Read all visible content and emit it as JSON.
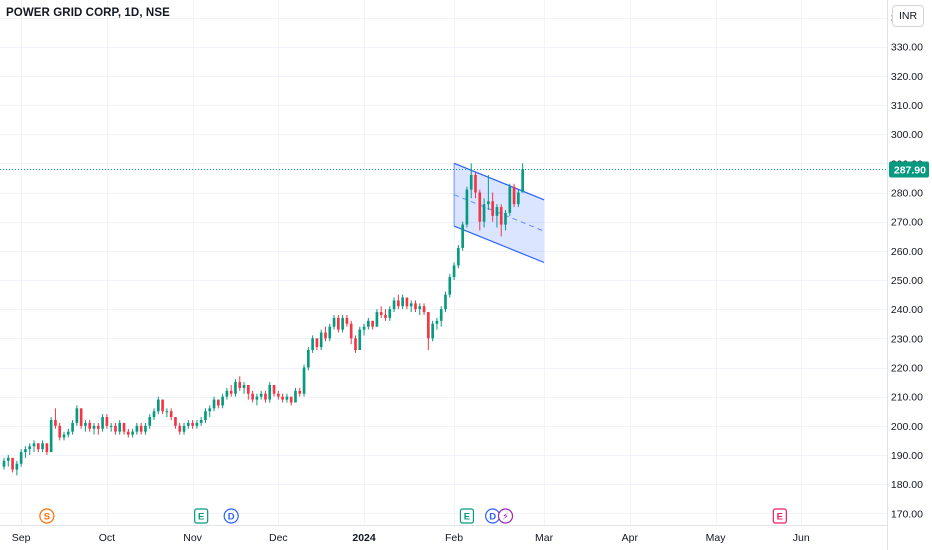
{
  "header": {
    "title": "POWER GRID CORP, 1D, NSE",
    "currency": "INR"
  },
  "colors": {
    "up": "#089981",
    "down": "#f23645",
    "channel_border": "#2962ff",
    "channel_fill": "#2962ff",
    "last_price_line": "#089981",
    "grid": "#f0f3fa",
    "axis_text": "#131722",
    "event_earnings": "#089981",
    "event_dividend": "#2962ff",
    "event_split": "#ff6d00",
    "event_future_earnings": "#e91e63",
    "event_news": "#9c27b0"
  },
  "chart_data": {
    "type": "candlestick",
    "symbol": "POWER GRID CORP",
    "interval": "1D",
    "exchange": "NSE",
    "y_axis": {
      "ylim": [
        166,
        346
      ],
      "ticks": [
        "170.00",
        "180.00",
        "190.00",
        "200.00",
        "210.00",
        "220.00",
        "230.00",
        "240.00",
        "250.00",
        "260.00",
        "270.00",
        "280.00",
        "290.00",
        "300.00",
        "310.00",
        "320.00",
        "330.00",
        "340.00"
      ],
      "position": "right"
    },
    "x_axis": {
      "xlim": [
        0,
        206
      ],
      "ticks": [
        {
          "label": "Sep",
          "x": 4
        },
        {
          "label": "Oct",
          "x": 24
        },
        {
          "label": "Nov",
          "x": 44
        },
        {
          "label": "Dec",
          "x": 64
        },
        {
          "label": "2024",
          "x": 84
        },
        {
          "label": "Feb",
          "x": 105
        },
        {
          "label": "Mar",
          "x": 126
        },
        {
          "label": "Apr",
          "x": 146
        },
        {
          "label": "May",
          "x": 166
        },
        {
          "label": "Jun",
          "x": 186
        }
      ]
    },
    "last_price": "287.90",
    "last_price_value": 287.9,
    "candles": [
      [
        186,
        189,
        185,
        188
      ],
      [
        188,
        190,
        186,
        189
      ],
      [
        189,
        189,
        184,
        185
      ],
      [
        185,
        188,
        183,
        187
      ],
      [
        187,
        192,
        186,
        191
      ],
      [
        191,
        193,
        189,
        192
      ],
      [
        192,
        194,
        190,
        193
      ],
      [
        193,
        195,
        191,
        194
      ],
      [
        194,
        194,
        191,
        192
      ],
      [
        192,
        195,
        191,
        194
      ],
      [
        194,
        194,
        190,
        191
      ],
      [
        191,
        203,
        191,
        202
      ],
      [
        202,
        206,
        199,
        200
      ],
      [
        200,
        201,
        195,
        196
      ],
      [
        196,
        198,
        195,
        197
      ],
      [
        197,
        199,
        196,
        198
      ],
      [
        198,
        202,
        197,
        201
      ],
      [
        201,
        207,
        200,
        206
      ],
      [
        206,
        206,
        199,
        200
      ],
      [
        200,
        202,
        198,
        201
      ],
      [
        201,
        202,
        198,
        199
      ],
      [
        199,
        201,
        197,
        200
      ],
      [
        200,
        201,
        197,
        199
      ],
      [
        199,
        204,
        198,
        203
      ],
      [
        203,
        204,
        199,
        200
      ],
      [
        200,
        201,
        198,
        200
      ],
      [
        200,
        201,
        197,
        198
      ],
      [
        198,
        202,
        197,
        201
      ],
      [
        201,
        201,
        197,
        198
      ],
      [
        198,
        199,
        196,
        197
      ],
      [
        197,
        199,
        196,
        198
      ],
      [
        198,
        201,
        197,
        200
      ],
      [
        200,
        201,
        197,
        198
      ],
      [
        198,
        201,
        197,
        200
      ],
      [
        200,
        204,
        199,
        203
      ],
      [
        203,
        206,
        202,
        205
      ],
      [
        205,
        210,
        204,
        209
      ],
      [
        209,
        209,
        204,
        205
      ],
      [
        205,
        206,
        203,
        205
      ],
      [
        205,
        206,
        202,
        203
      ],
      [
        203,
        203,
        199,
        200
      ],
      [
        200,
        201,
        197,
        198
      ],
      [
        198,
        201,
        197,
        200
      ],
      [
        200,
        202,
        199,
        201
      ],
      [
        201,
        202,
        199,
        200
      ],
      [
        200,
        202,
        199,
        201
      ],
      [
        201,
        203,
        200,
        202
      ],
      [
        202,
        206,
        201,
        205
      ],
      [
        205,
        207,
        203,
        206
      ],
      [
        206,
        210,
        205,
        209
      ],
      [
        209,
        209,
        206,
        207
      ],
      [
        207,
        211,
        206,
        210
      ],
      [
        210,
        213,
        209,
        212
      ],
      [
        212,
        214,
        210,
        211
      ],
      [
        211,
        216,
        210,
        215
      ],
      [
        215,
        217,
        212,
        213
      ],
      [
        213,
        215,
        211,
        214
      ],
      [
        214,
        214,
        209,
        211
      ],
      [
        211,
        212,
        208,
        209
      ],
      [
        209,
        211,
        207,
        210
      ],
      [
        210,
        212,
        209,
        211
      ],
      [
        211,
        212,
        208,
        209
      ],
      [
        209,
        215,
        208,
        214
      ],
      [
        214,
        214,
        210,
        211
      ],
      [
        211,
        212,
        209,
        210
      ],
      [
        210,
        211,
        208,
        209
      ],
      [
        209,
        211,
        208,
        210
      ],
      [
        210,
        210,
        207,
        208
      ],
      [
        208,
        213,
        208,
        212
      ],
      [
        212,
        213,
        210,
        211
      ],
      [
        211,
        221,
        210,
        220
      ],
      [
        220,
        227,
        219,
        226
      ],
      [
        226,
        231,
        225,
        230
      ],
      [
        230,
        230,
        226,
        227
      ],
      [
        227,
        233,
        226,
        232
      ],
      [
        232,
        234,
        229,
        230
      ],
      [
        230,
        235,
        229,
        234
      ],
      [
        234,
        238,
        233,
        237
      ],
      [
        237,
        238,
        232,
        233
      ],
      [
        233,
        238,
        232,
        237
      ],
      [
        237,
        238,
        234,
        235
      ],
      [
        235,
        236,
        228,
        230
      ],
      [
        230,
        231,
        225,
        226
      ],
      [
        226,
        234,
        226,
        233
      ],
      [
        233,
        235,
        231,
        234
      ],
      [
        234,
        237,
        233,
        236
      ],
      [
        236,
        236,
        233,
        234
      ],
      [
        234,
        240,
        234,
        239
      ],
      [
        239,
        241,
        237,
        238
      ],
      [
        238,
        240,
        236,
        237
      ],
      [
        237,
        241,
        236,
        240
      ],
      [
        240,
        244,
        239,
        243
      ],
      [
        243,
        245,
        240,
        241
      ],
      [
        241,
        245,
        240,
        244
      ],
      [
        244,
        244,
        240,
        241
      ],
      [
        241,
        243,
        239,
        242
      ],
      [
        242,
        243,
        239,
        240
      ],
      [
        240,
        242,
        238,
        241
      ],
      [
        241,
        242,
        238,
        239
      ],
      [
        239,
        239,
        226,
        230
      ],
      [
        230,
        236,
        229,
        235
      ],
      [
        235,
        237,
        233,
        236
      ],
      [
        236,
        241,
        234,
        240
      ],
      [
        240,
        246,
        239,
        245
      ],
      [
        245,
        252,
        244,
        251
      ],
      [
        251,
        256,
        250,
        255
      ],
      [
        255,
        262,
        254,
        261
      ],
      [
        261,
        270,
        260,
        269
      ],
      [
        269,
        282,
        268,
        281
      ],
      [
        281,
        290,
        278,
        286
      ],
      [
        286,
        287,
        278,
        280
      ],
      [
        280,
        281,
        267,
        270
      ],
      [
        270,
        278,
        268,
        276
      ],
      [
        276,
        286,
        274,
        277
      ],
      [
        277,
        280,
        270,
        272
      ],
      [
        272,
        276,
        268,
        275
      ],
      [
        275,
        276,
        265,
        269
      ],
      [
        269,
        274,
        267,
        273
      ],
      [
        273,
        283,
        272,
        282
      ],
      [
        282,
        283,
        275,
        276
      ],
      [
        276,
        281,
        275,
        280
      ],
      [
        280,
        290,
        280,
        288
      ]
    ],
    "channel": {
      "upper_start": [
        105,
        290
      ],
      "upper_end": [
        126,
        277.5
      ],
      "lower_start": [
        105,
        268.5
      ],
      "lower_end": [
        126,
        256
      ],
      "label": ""
    },
    "events": [
      {
        "type": "split",
        "letter": "S",
        "x": 10
      },
      {
        "type": "earnings",
        "letter": "E",
        "x": 46
      },
      {
        "type": "dividend",
        "letter": "D",
        "x": 53
      },
      {
        "type": "earnings",
        "letter": "E",
        "x": 108
      },
      {
        "type": "dividend",
        "letter": "D",
        "x": 114
      },
      {
        "type": "news",
        "letter": "⚡",
        "x": 117
      },
      {
        "type": "future_earnings",
        "letter": "E",
        "x": 181
      }
    ],
    "grid": true
  }
}
